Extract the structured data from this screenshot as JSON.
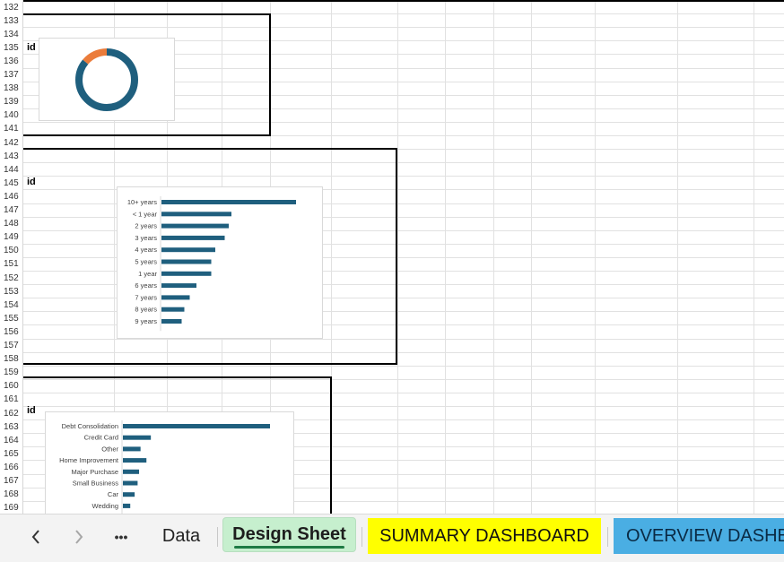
{
  "sheet": {
    "start_row": 132,
    "row_count": 38,
    "id_labels": [
      "id",
      "id",
      "id"
    ]
  },
  "colors": {
    "bar": "#1f5f7e",
    "donut_main": "#1f5f7e",
    "donut_accent": "#eb7c3b",
    "tab_active_bg": "#c6efce",
    "tab_summary_bg": "#ffff00",
    "tab_overview_bg": "#4aaee3"
  },
  "chart_data": [
    {
      "type": "pie",
      "style": "donut",
      "slices": [
        {
          "value": 86,
          "color": "#1f5f7e"
        },
        {
          "value": 14,
          "color": "#eb7c3b"
        }
      ]
    },
    {
      "type": "bar",
      "orientation": "horizontal",
      "categories": [
        "10+ years",
        "< 1 year",
        "2 years",
        "3 years",
        "4 years",
        "5 years",
        "1 year",
        "6 years",
        "7 years",
        "8 years",
        "9 years"
      ],
      "values": [
        100,
        52,
        50,
        47,
        40,
        37,
        37,
        26,
        21,
        17,
        15
      ],
      "xlim": [
        0,
        100
      ]
    },
    {
      "type": "bar",
      "orientation": "horizontal",
      "categories": [
        "Debt Consolidation",
        "Credit Card",
        "Other",
        "Home Improvement",
        "Major Purchase",
        "Small Business",
        "Car",
        "Wedding"
      ],
      "values": [
        100,
        19,
        12,
        16,
        11,
        10,
        8,
        5
      ],
      "xlim": [
        0,
        100
      ]
    }
  ],
  "tabbar": {
    "prev_icon": "chevron-left-icon",
    "next_icon": "chevron-right-icon",
    "more_label": "•••",
    "tabs": [
      {
        "label": "Data"
      },
      {
        "label": "Design Sheet"
      },
      {
        "label": "SUMMARY DASHBOARD"
      },
      {
        "label": "OVERVIEW DASHBOARD"
      }
    ]
  }
}
